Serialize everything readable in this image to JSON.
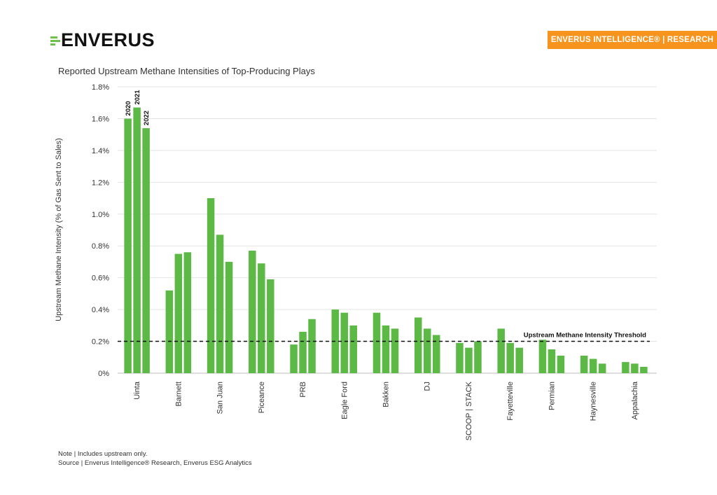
{
  "brand": {
    "name": "ENVERUS",
    "accent": "#6cc24a"
  },
  "badge": {
    "label": "ENVERUS INTELLIGENCE® | RESEARCH",
    "color": "#f7941d"
  },
  "notes": {
    "note": "Note | Includes upstream only.",
    "source": "Source | Enverus Intelligence® Research, Enverus ESG Analytics"
  },
  "chart_data": {
    "type": "bar",
    "title": "Reported Upstream Methane Intensities of Top-Producing Plays",
    "ylabel": "Upstream Methane Intensity (% of Gas Sent to Sales)",
    "xlabel": "",
    "ylim": [
      0,
      1.8
    ],
    "y_ticks": [
      "0%",
      "0.2%",
      "0.4%",
      "0.6%",
      "0.8%",
      "1.0%",
      "1.2%",
      "1.4%",
      "1.6%",
      "1.8%"
    ],
    "grid": true,
    "bar_color": "#5cb946",
    "categories": [
      "Uinta",
      "Barnett",
      "San Juan",
      "Piceance",
      "PRB",
      "Eagle Ford",
      "Bakken",
      "DJ",
      "SCOOP | STACK",
      "Fayetteville",
      "Permian",
      "Haynesville",
      "Appalachia"
    ],
    "series": [
      {
        "name": "2020",
        "values": [
          1.6,
          0.52,
          1.1,
          0.77,
          0.18,
          0.4,
          0.38,
          0.35,
          0.19,
          0.28,
          0.21,
          0.11,
          0.07
        ]
      },
      {
        "name": "2021",
        "values": [
          1.67,
          0.75,
          0.87,
          0.69,
          0.26,
          0.38,
          0.3,
          0.28,
          0.16,
          0.19,
          0.15,
          0.09,
          0.06
        ]
      },
      {
        "name": "2022",
        "values": [
          1.54,
          0.76,
          0.7,
          0.59,
          0.34,
          0.3,
          0.28,
          0.24,
          0.2,
          0.16,
          0.11,
          0.06,
          0.04
        ]
      }
    ],
    "series_labels_on": "Uinta",
    "threshold": {
      "value": 0.2,
      "label": "Upstream Methane Intensity Threshold"
    }
  }
}
